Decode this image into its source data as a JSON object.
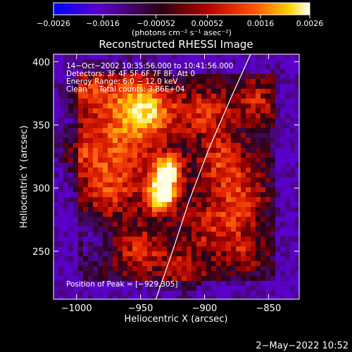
{
  "chart_data": {
    "type": "heatmap",
    "title": "Reconstructed RHESSI Image",
    "xlabel": "Heliocentric X (arcsec)",
    "ylabel": "Heliocentric Y (arcsec)",
    "xlim": [
      -1018,
      -826
    ],
    "ylim": [
      212,
      406
    ],
    "xticks": [
      -1000,
      -950,
      -900,
      -850
    ],
    "xtick_labels": [
      "−1000",
      "−950",
      "−900",
      "−850"
    ],
    "yticks": [
      250,
      300,
      350,
      400
    ],
    "ytick_labels": [
      "250",
      "300",
      "350",
      "400"
    ],
    "colorbar": {
      "range": [
        -0.0026,
        0.0026
      ],
      "ticks": [
        -0.0026,
        -0.0016,
        -0.00052,
        0.00052,
        0.0016,
        0.0026
      ],
      "tick_labels": [
        "−0.0026",
        "−0.0016",
        "−0.00052",
        "0.00052",
        "0.0016",
        "0.0026"
      ],
      "unit_label": "(photons cm⁻² s⁻¹ asec⁻²)",
      "colors": [
        "#0000ff",
        "#5a00c8",
        "#2a0010",
        "#b40000",
        "#ff5000",
        "#ffd200",
        "#ffffff"
      ]
    },
    "annotations": [
      "14−Oct−2002 10:35:56.000 to 10:41:56.000",
      "Detectors: 3F 4F 5F 6F 7F 8F, Att 0",
      "Energy Range: 6.0 − 12.0 keV",
      "Clean     Total counts: 3.86E+04"
    ],
    "peak_label": "Position of Peak = [−929,305]",
    "peak": [
      -929,
      305
    ],
    "limb_curve": [
      [
        -938,
        212
      ],
      [
        -925,
        250
      ],
      [
        -912,
        290
      ],
      [
        -897,
        330
      ],
      [
        -880,
        370
      ],
      [
        -864,
        406
      ]
    ],
    "grid": false
  },
  "footer": {
    "timestamp": "2−May−2022 10:52"
  }
}
